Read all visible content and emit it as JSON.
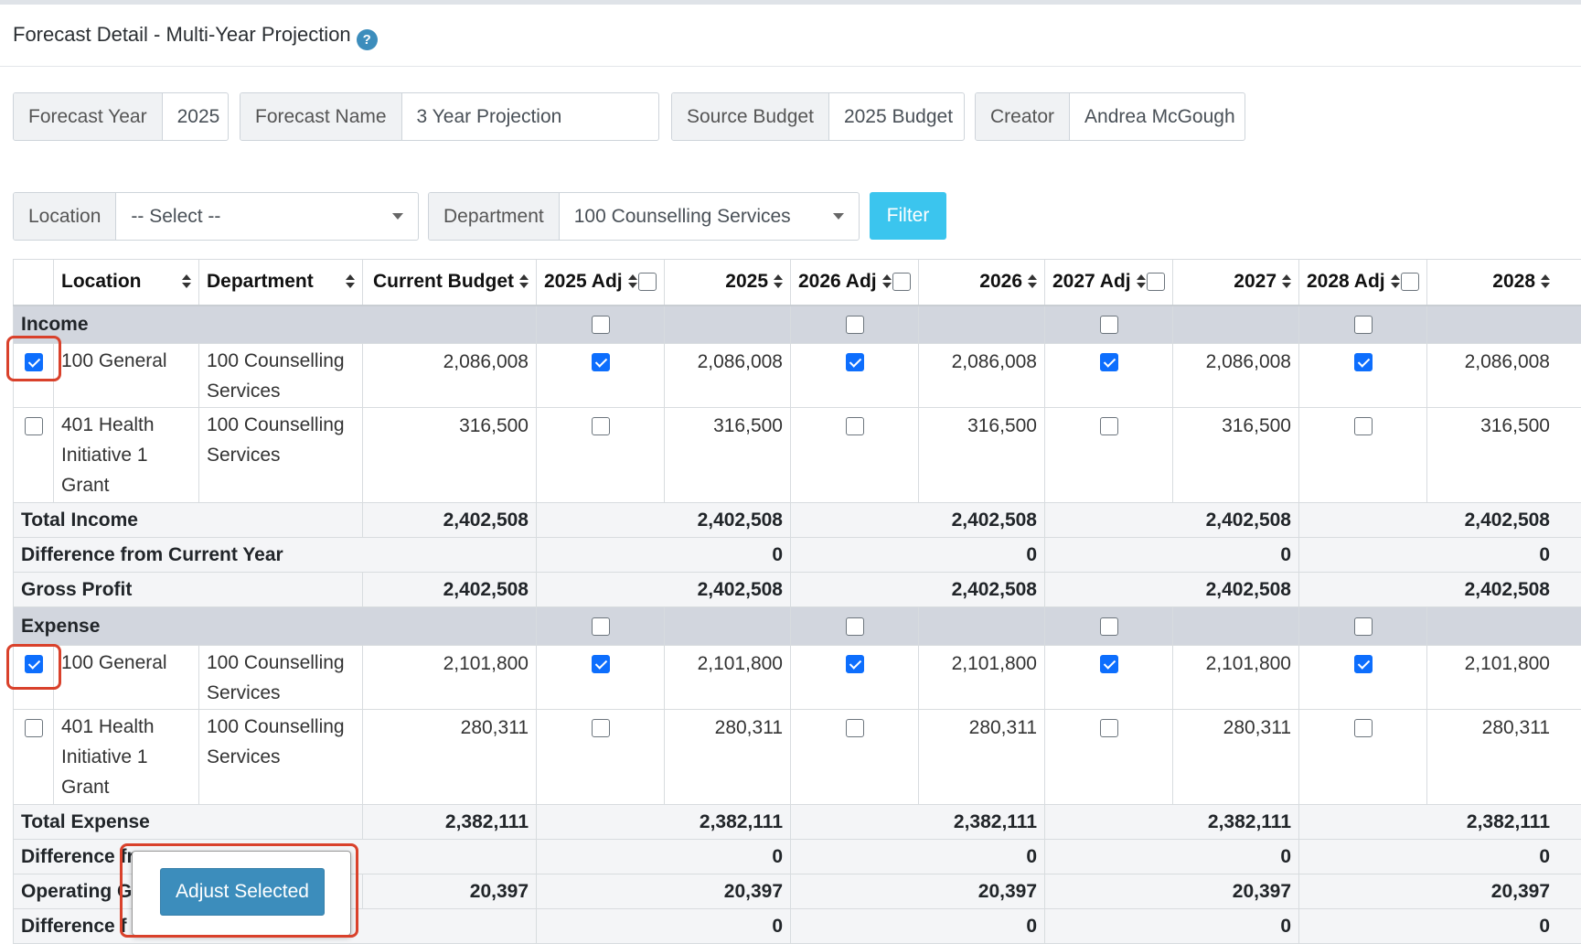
{
  "page": {
    "title": "Forecast Detail - Multi-Year Projection",
    "help_glyph": "?"
  },
  "info": {
    "forecast_year_label": "Forecast Year",
    "forecast_year_value": "2025",
    "forecast_name_label": "Forecast Name",
    "forecast_name_value": "3 Year Projection",
    "source_budget_label": "Source Budget",
    "source_budget_value": "2025 Budget",
    "creator_label": "Creator",
    "creator_value": "Andrea McGough"
  },
  "filters": {
    "location_label": "Location",
    "location_value": "-- Select --",
    "department_label": "Department",
    "department_value": "100 Counselling Services",
    "filter_button": "Filter"
  },
  "table": {
    "headers": {
      "location": "Location",
      "department": "Department",
      "current_budget": "Current Budget",
      "adj_2025": "2025 Adj",
      "y2025": "2025",
      "adj_2026": "2026 Adj",
      "y2026": "2026",
      "adj_2027": "2027 Adj",
      "y2027": "2027",
      "adj_2028": "2028 Adj",
      "y2028": "2028"
    },
    "income": {
      "label": "Income",
      "rows": [
        {
          "location": "100 General",
          "department": "100 Counselling Services",
          "current": "2,086,008",
          "y2025": "2,086,008",
          "y2026": "2,086,008",
          "y2027": "2,086,008",
          "y2028": "2,086,008",
          "checked": true
        },
        {
          "location": "401 Health Initiative 1 Grant",
          "department": "100 Counselling Services",
          "current": "316,500",
          "y2025": "316,500",
          "y2026": "316,500",
          "y2027": "316,500",
          "y2028": "316,500",
          "checked": false
        }
      ],
      "total": {
        "label": "Total Income",
        "current": "2,402,508",
        "y2025": "2,402,508",
        "y2026": "2,402,508",
        "y2027": "2,402,508",
        "y2028": "2,402,508"
      },
      "diff": {
        "label": "Difference from Current Year",
        "y2025": "0",
        "y2026": "0",
        "y2027": "0",
        "y2028": "0"
      },
      "gross": {
        "label": "Gross Profit",
        "current": "2,402,508",
        "y2025": "2,402,508",
        "y2026": "2,402,508",
        "y2027": "2,402,508",
        "y2028": "2,402,508"
      }
    },
    "expense": {
      "label": "Expense",
      "rows": [
        {
          "location": "100 General",
          "department": "100 Counselling Services",
          "current": "2,101,800",
          "y2025": "2,101,800",
          "y2026": "2,101,800",
          "y2027": "2,101,800",
          "y2028": "2,101,800",
          "checked": true
        },
        {
          "location": "401 Health Initiative 1 Grant",
          "department": "100 Counselling Services",
          "current": "280,311",
          "y2025": "280,311",
          "y2026": "280,311",
          "y2027": "280,311",
          "y2028": "280,311",
          "checked": false
        }
      ],
      "total": {
        "label": "Total Expense",
        "current": "2,382,111",
        "y2025": "2,382,111",
        "y2026": "2,382,111",
        "y2027": "2,382,111",
        "y2028": "2,382,111"
      },
      "diff": {
        "label": "Difference fr",
        "y2025": "0",
        "y2026": "0",
        "y2027": "0",
        "y2028": "0"
      }
    },
    "operating": {
      "label": "Operating Ga",
      "current": "20,397",
      "y2025": "20,397",
      "y2026": "20,397",
      "y2027": "20,397",
      "y2028": "20,397"
    },
    "final_diff": {
      "label": "Difference f",
      "y2025": "0",
      "y2026": "0",
      "y2027": "0",
      "y2028": "0"
    }
  },
  "popover": {
    "button_label": "Adjust Selected"
  },
  "colors": {
    "accent": "#3c8dbc",
    "filter": "#3bc5ee",
    "checkbox": "#0d6efd",
    "highlight": "#d9412b",
    "section_bg": "#d2d6de"
  }
}
